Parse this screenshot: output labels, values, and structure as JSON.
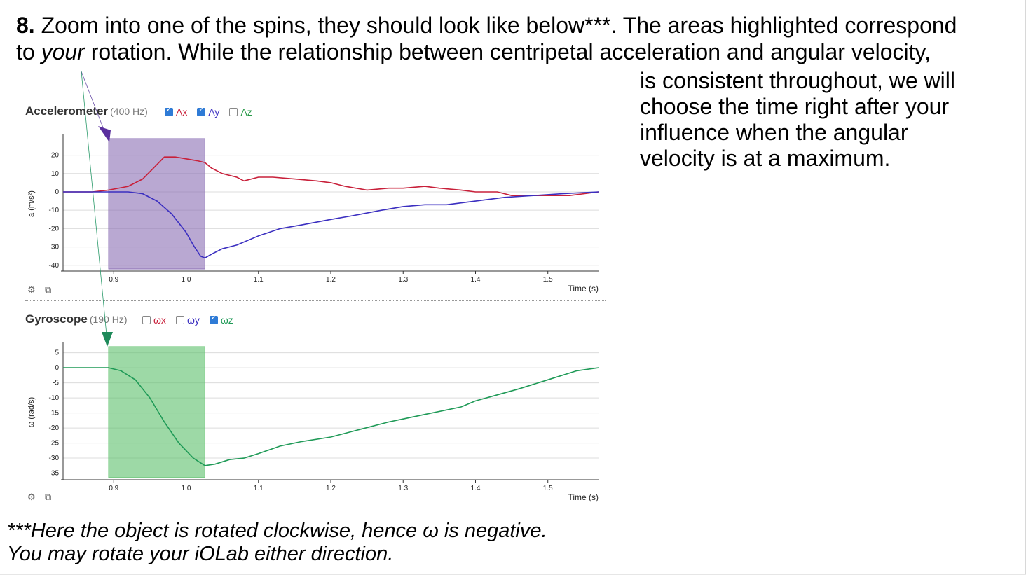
{
  "intro": {
    "number": "8.",
    "line1": " Zoom into one of the spins, they should look like below***. The areas highlighted correspond",
    "line2_pre": "to ",
    "line2_em": "your",
    "line2_post": " rotation. While the relationship between centripetal acceleration and angular velocity,"
  },
  "side_text": [
    "is consistent throughout, we will",
    "choose the time right after your",
    "influence when the angular",
    "velocity is at a maximum."
  ],
  "footnote": [
    "***Here the object is rotated clockwise, hence ω is negative.",
    "You may rotate your iOLab either direction."
  ],
  "accelerometer": {
    "title": "Accelerometer",
    "rate": "(400 Hz)",
    "legend": [
      {
        "label": "Ax",
        "checked": true,
        "color": "#c8203a"
      },
      {
        "label": "Ay",
        "checked": true,
        "color": "#3b2fc0"
      },
      {
        "label": "Az",
        "checked": false,
        "color": "#2a9a4a"
      }
    ],
    "ylabel": "a (m/s²)",
    "xlabel": "Time (s)",
    "highlight_color": "#8a6eb4"
  },
  "gyroscope": {
    "title": "Gyroscope",
    "rate": "(190 Hz)",
    "legend": [
      {
        "label": "ωx",
        "checked": false,
        "color": "#c8203a"
      },
      {
        "label": "ωy",
        "checked": false,
        "color": "#3b2fc0"
      },
      {
        "label": "ωz",
        "checked": true,
        "color": "#1f9a57"
      }
    ],
    "ylabel": "ω (rad/s)",
    "xlabel": "Time (s)",
    "highlight_color": "#5cc06a"
  },
  "icons": {
    "settings": "gear-icon",
    "export": "external-link-icon"
  },
  "chart_data": [
    {
      "type": "line",
      "title": "Accelerometer",
      "xlabel": "Time (s)",
      "ylabel": "a (m/s²)",
      "xlim": [
        0.83,
        1.57
      ],
      "ylim": [
        -42,
        29
      ],
      "xticks": [
        0.9,
        1.0,
        1.1,
        1.2,
        1.3,
        1.4,
        1.5
      ],
      "yticks": [
        20,
        10,
        0,
        -10,
        -20,
        -30,
        -40
      ],
      "highlight": [
        0.893,
        1.026
      ],
      "grid": true,
      "series": [
        {
          "name": "Ax",
          "color": "#c8203a",
          "x": [
            0.83,
            0.87,
            0.893,
            0.92,
            0.94,
            0.955,
            0.97,
            0.985,
            1.0,
            1.015,
            1.026,
            1.035,
            1.05,
            1.07,
            1.08,
            1.1,
            1.12,
            1.15,
            1.18,
            1.2,
            1.22,
            1.25,
            1.28,
            1.3,
            1.33,
            1.35,
            1.38,
            1.4,
            1.43,
            1.45,
            1.48,
            1.5,
            1.53,
            1.57
          ],
          "y": [
            0,
            0,
            1,
            3,
            7,
            13,
            19,
            19,
            18,
            17,
            16,
            13,
            10,
            8,
            6,
            8,
            8,
            7,
            6,
            5,
            3,
            1,
            2,
            2,
            3,
            2,
            1,
            0,
            0,
            -2,
            -2,
            -2,
            -2,
            0
          ]
        },
        {
          "name": "Ay",
          "color": "#3b2fc0",
          "x": [
            0.83,
            0.87,
            0.893,
            0.92,
            0.94,
            0.96,
            0.98,
            1.0,
            1.01,
            1.02,
            1.026,
            1.035,
            1.05,
            1.07,
            1.1,
            1.13,
            1.16,
            1.2,
            1.23,
            1.27,
            1.3,
            1.33,
            1.36,
            1.4,
            1.44,
            1.48,
            1.52,
            1.57
          ],
          "y": [
            0,
            0,
            0,
            0,
            -1,
            -5,
            -12,
            -22,
            -29,
            -35,
            -36,
            -34,
            -31,
            -29,
            -24,
            -20,
            -18,
            -15,
            -13,
            -10,
            -8,
            -7,
            -7,
            -5,
            -3,
            -2,
            -1,
            0
          ]
        }
      ]
    },
    {
      "type": "line",
      "title": "Gyroscope",
      "xlabel": "Time (s)",
      "ylabel": "ω (rad/s)",
      "xlim": [
        0.83,
        1.57
      ],
      "ylim": [
        -36.5,
        7
      ],
      "xticks": [
        0.9,
        1.0,
        1.1,
        1.2,
        1.3,
        1.4,
        1.5
      ],
      "yticks": [
        5,
        0,
        -5,
        -10,
        -15,
        -20,
        -25,
        -30,
        -35
      ],
      "highlight": [
        0.893,
        1.026
      ],
      "grid": true,
      "series": [
        {
          "name": "ωz",
          "color": "#1f9a57",
          "x": [
            0.83,
            0.87,
            0.893,
            0.91,
            0.93,
            0.95,
            0.97,
            0.99,
            1.01,
            1.026,
            1.04,
            1.06,
            1.08,
            1.1,
            1.13,
            1.16,
            1.2,
            1.24,
            1.28,
            1.3,
            1.33,
            1.36,
            1.38,
            1.4,
            1.43,
            1.46,
            1.5,
            1.54,
            1.57
          ],
          "y": [
            0,
            0,
            0,
            -1,
            -4,
            -10,
            -18,
            -25,
            -30,
            -32.5,
            -32,
            -30.5,
            -30,
            -28.5,
            -26,
            -24.5,
            -23,
            -20.5,
            -18,
            -17,
            -15.5,
            -14,
            -13,
            -11,
            -9,
            -7,
            -4,
            -1,
            0
          ]
        }
      ]
    }
  ]
}
